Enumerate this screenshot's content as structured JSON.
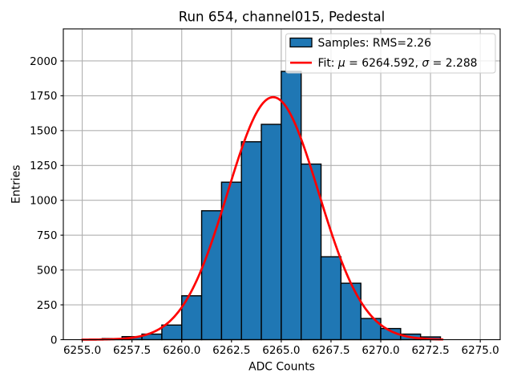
{
  "figure": {
    "background": "#ffffff"
  },
  "chart_data": {
    "type": "bar",
    "subtype": "histogram-with-gaussian-fit",
    "title": "Run 654, channel015, Pedestal",
    "xlabel": "ADC Counts",
    "ylabel": "Entries",
    "xlim": [
      6254.05,
      6276.0
    ],
    "ylim": [
      0,
      2230
    ],
    "grid": true,
    "grid_color": "#b0b0b0",
    "x_ticks": [
      6255.0,
      6257.5,
      6260.0,
      6262.5,
      6265.0,
      6267.5,
      6270.0,
      6272.5,
      6275.0
    ],
    "x_tick_labels": [
      "6255.0",
      "6257.5",
      "6260.0",
      "6262.5",
      "6265.0",
      "6267.5",
      "6270.0",
      "6272.5",
      "6275.0"
    ],
    "y_ticks": [
      0,
      250,
      500,
      750,
      1000,
      1250,
      1500,
      1750,
      2000
    ],
    "y_tick_labels": [
      "0",
      "250",
      "500",
      "750",
      "1000",
      "1250",
      "1500",
      "1750",
      "2000"
    ],
    "histogram": {
      "bin_width": 1,
      "bin_left_edges": [
        6255,
        6256,
        6257,
        6258,
        6259,
        6260,
        6261,
        6262,
        6263,
        6264,
        6265,
        6266,
        6267,
        6268,
        6269,
        6270,
        6271,
        6272
      ],
      "counts": [
        0,
        8,
        22,
        40,
        105,
        315,
        925,
        1130,
        1420,
        1545,
        1925,
        1260,
        595,
        405,
        152,
        80,
        40,
        20
      ],
      "fill_color": "#1f77b4",
      "edge_color": "#000000"
    },
    "fit_curve": {
      "shape": "gaussian",
      "amplitude": 1740,
      "mu": 6264.592,
      "sigma": 2.288,
      "x_range": [
        6255.0,
        6273.1
      ],
      "color": "#ff0000"
    },
    "legend": {
      "position": "upper right",
      "frame_color": "#cccccc",
      "entries": [
        {
          "type": "patch",
          "label": "Samples: RMS=2.26",
          "fill": "#1f77b4",
          "edge": "#000000"
        },
        {
          "type": "line",
          "label": "Fit: μ = 6264.592, σ = 2.288",
          "color": "#ff0000"
        }
      ]
    }
  }
}
